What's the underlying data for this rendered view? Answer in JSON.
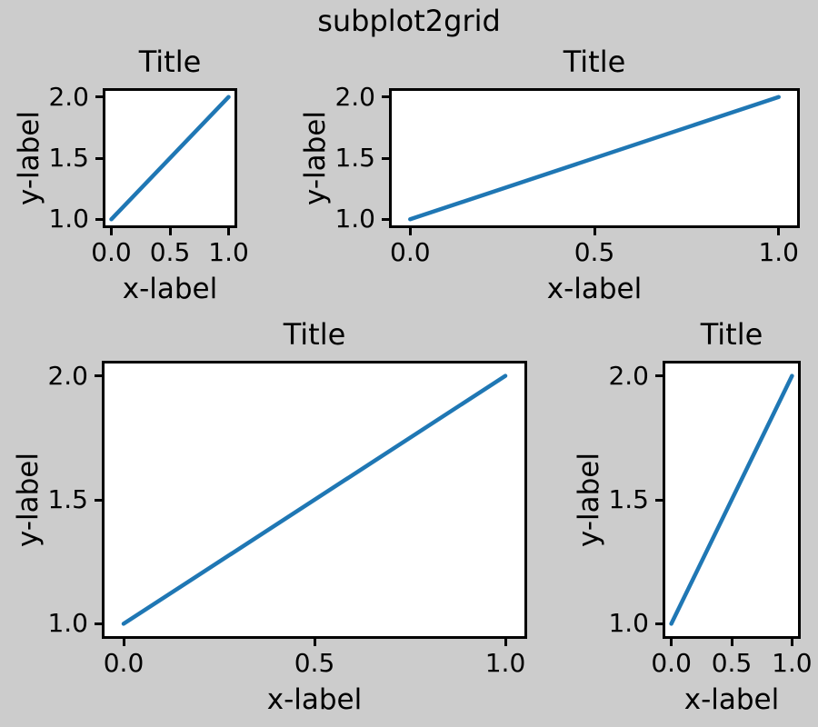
{
  "figure": {
    "suptitle": "subplot2grid",
    "background_color": "#cccccc",
    "axes_facecolor": "#ffffff",
    "spine_color": "#000000",
    "text_color": "#000000",
    "line_color": "#1f77b4"
  },
  "chart_data": [
    {
      "id": "ax1",
      "type": "line",
      "title": "Title",
      "xlabel": "x-label",
      "ylabel": "y-label",
      "x": [
        0,
        1
      ],
      "y": [
        1,
        2
      ],
      "xlim": [
        -0.05,
        1.05
      ],
      "ylim": [
        0.95,
        2.05
      ],
      "xticks": [
        {
          "value": 0.0,
          "label": "0.0"
        },
        {
          "value": 0.5,
          "label": "0.5"
        },
        {
          "value": 1.0,
          "label": "1.0"
        }
      ],
      "yticks": [
        {
          "value": 1.0,
          "label": "1.0"
        },
        {
          "value": 1.5,
          "label": "1.5"
        },
        {
          "value": 2.0,
          "label": "2.0"
        }
      ],
      "grid": false,
      "legend": null
    },
    {
      "id": "ax2",
      "type": "line",
      "title": "Title",
      "xlabel": "x-label",
      "ylabel": "y-label",
      "x": [
        0,
        1
      ],
      "y": [
        1,
        2
      ],
      "xlim": [
        -0.05,
        1.05
      ],
      "ylim": [
        0.95,
        2.05
      ],
      "xticks": [
        {
          "value": 0.0,
          "label": "0.0"
        },
        {
          "value": 0.5,
          "label": "0.5"
        },
        {
          "value": 1.0,
          "label": "1.0"
        }
      ],
      "yticks": [
        {
          "value": 1.0,
          "label": "1.0"
        },
        {
          "value": 1.5,
          "label": "1.5"
        },
        {
          "value": 2.0,
          "label": "2.0"
        }
      ],
      "grid": false,
      "legend": null
    },
    {
      "id": "ax3",
      "type": "line",
      "title": "Title",
      "xlabel": "x-label",
      "ylabel": "y-label",
      "x": [
        0,
        1
      ],
      "y": [
        1,
        2
      ],
      "xlim": [
        -0.05,
        1.05
      ],
      "ylim": [
        0.95,
        2.05
      ],
      "xticks": [
        {
          "value": 0.0,
          "label": "0.0"
        },
        {
          "value": 0.5,
          "label": "0.5"
        },
        {
          "value": 1.0,
          "label": "1.0"
        }
      ],
      "yticks": [
        {
          "value": 1.0,
          "label": "1.0"
        },
        {
          "value": 1.5,
          "label": "1.5"
        },
        {
          "value": 2.0,
          "label": "2.0"
        }
      ],
      "grid": false,
      "legend": null
    },
    {
      "id": "ax4",
      "type": "line",
      "title": "Title",
      "xlabel": "x-label",
      "ylabel": "y-label",
      "x": [
        0,
        1
      ],
      "y": [
        1,
        2
      ],
      "xlim": [
        -0.05,
        1.05
      ],
      "ylim": [
        0.95,
        2.05
      ],
      "xticks": [
        {
          "value": 0.0,
          "label": "0.0"
        },
        {
          "value": 0.5,
          "label": "0.5"
        },
        {
          "value": 1.0,
          "label": "1.0"
        }
      ],
      "yticks": [
        {
          "value": 1.0,
          "label": "1.0"
        },
        {
          "value": 1.5,
          "label": "1.5"
        },
        {
          "value": 2.0,
          "label": "2.0"
        }
      ],
      "grid": false,
      "legend": null
    }
  ]
}
